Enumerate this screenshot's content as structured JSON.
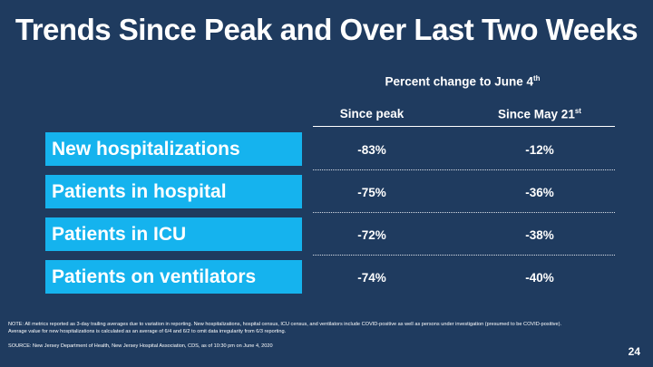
{
  "title": "Trends Since Peak and Over Last Two Weeks",
  "table": {
    "header_text": "Percent change to June 4",
    "header_sup": "th",
    "col_since_peak": "Since peak",
    "col_since_may_text": "Since May 21",
    "col_since_may_sup": "st",
    "rows": [
      {
        "label": "New hospitalizations",
        "since_peak": "-83%",
        "since_may": "-12%"
      },
      {
        "label": "Patients in hospital",
        "since_peak": "-75%",
        "since_may": "-36%"
      },
      {
        "label": "Patients in ICU",
        "since_peak": "-72%",
        "since_may": "-38%"
      },
      {
        "label": "Patients on ventilators",
        "since_peak": "-74%",
        "since_may": "-40%"
      }
    ]
  },
  "colors": {
    "background": "#1f3b5f",
    "label_box": "#15b3ee",
    "text": "#ffffff"
  },
  "footer": {
    "note_line1": "NOTE: All metrics reported as 3-day trailing averages due to variation in reporting. New hospitalizations, hospital census, ICU census, and ventilators include COVID-positive as well as persons under investigation (presumed to be COVID-positive).",
    "note_line2": "Average value for new hospitalizations is calculated as an average of 6/4 and 6/2 to omit data irregularity from 6/3 reporting.",
    "source": "SOURCE: New Jersey Department of Health, New Jersey Hospital Association, CDS, as of 10:30 pm on June 4, 2020",
    "page_number": "24"
  }
}
